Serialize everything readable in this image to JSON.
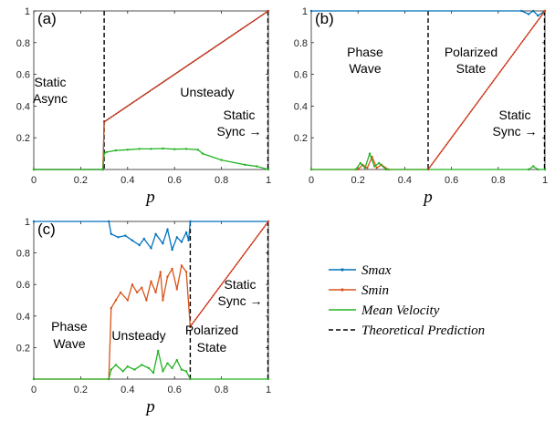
{
  "colors": {
    "smax": "#0072BD",
    "smin": "#D95319",
    "mean_velocity": "#22B322",
    "theoretical": "#000000",
    "theory_overlay": "#C02020"
  },
  "legend": {
    "items": [
      {
        "key": "smax",
        "label": "Smax",
        "style": "line-dot"
      },
      {
        "key": "smin",
        "label": "Smin",
        "style": "line-dot"
      },
      {
        "key": "mean_velocity",
        "label": "Mean Velocity",
        "style": "line"
      },
      {
        "key": "theoretical",
        "label": "Theoretical Prediction",
        "style": "dashed"
      }
    ]
  },
  "chart_data": [
    {
      "type": "line",
      "panel": "(a)",
      "xlabel": "p",
      "ylabel": "",
      "xlim": [
        0,
        1
      ],
      "ylim": [
        0,
        1
      ],
      "xticks": [
        "0",
        "0.2",
        "0.4",
        "0.6",
        "0.8",
        "1"
      ],
      "yticks": [
        "0.2",
        "0.4",
        "0.6",
        "0.8",
        "1"
      ],
      "regions": [
        {
          "lines": [
            "Static",
            "Async"
          ]
        },
        {
          "lines": [
            "Unsteady"
          ]
        },
        {
          "lines": [
            "Static",
            "Sync →"
          ]
        }
      ],
      "boundaries": [
        0.3,
        1.0
      ],
      "series": [
        {
          "key": "smax",
          "points": [
            [
              0,
              0
            ],
            [
              0.295,
              0
            ],
            [
              0.3,
              0.3
            ],
            [
              1.0,
              1.0
            ]
          ]
        },
        {
          "key": "smin",
          "points": [
            [
              0,
              0
            ],
            [
              0.295,
              0
            ],
            [
              0.3,
              0.3
            ],
            [
              1.0,
              1.0
            ]
          ]
        },
        {
          "key": "mean_velocity",
          "points": [
            [
              0,
              0
            ],
            [
              0.295,
              0
            ],
            [
              0.3,
              0.1
            ],
            [
              0.31,
              0.11
            ],
            [
              0.35,
              0.12
            ],
            [
              0.4,
              0.125
            ],
            [
              0.45,
              0.13
            ],
            [
              0.5,
              0.13
            ],
            [
              0.55,
              0.132
            ],
            [
              0.6,
              0.128
            ],
            [
              0.65,
              0.13
            ],
            [
              0.7,
              0.125
            ],
            [
              0.72,
              0.1
            ],
            [
              0.8,
              0.06
            ],
            [
              0.9,
              0.03
            ],
            [
              0.95,
              0.02
            ],
            [
              1.0,
              0.0
            ]
          ]
        }
      ]
    },
    {
      "type": "line",
      "panel": "(b)",
      "xlabel": "p",
      "ylabel": "",
      "xlim": [
        0,
        1
      ],
      "ylim": [
        0,
        1
      ],
      "xticks": [
        "0",
        "0.2",
        "0.4",
        "0.6",
        "0.8",
        "1"
      ],
      "yticks": [
        "0.2",
        "0.4",
        "0.6",
        "0.8",
        "1"
      ],
      "regions": [
        {
          "lines": [
            "Phase",
            "Wave"
          ]
        },
        {
          "lines": [
            "Polarized",
            "State"
          ]
        },
        {
          "lines": [
            "Static",
            "Sync →"
          ]
        }
      ],
      "boundaries": [
        0.5,
        1.0
      ],
      "series": [
        {
          "key": "smax",
          "points": [
            [
              0,
              1
            ],
            [
              0.9,
              1
            ],
            [
              0.93,
              0.98
            ],
            [
              0.95,
              1
            ],
            [
              0.97,
              0.97
            ],
            [
              1.0,
              1
            ]
          ]
        },
        {
          "key": "smin",
          "points": [
            [
              0,
              0
            ],
            [
              0.2,
              0
            ],
            [
              0.22,
              0.03
            ],
            [
              0.24,
              0.01
            ],
            [
              0.26,
              0.08
            ],
            [
              0.28,
              0.01
            ],
            [
              0.3,
              0.03
            ],
            [
              0.33,
              0.0
            ],
            [
              0.5,
              0.0
            ],
            [
              1.0,
              1.0
            ]
          ]
        },
        {
          "key": "mean_velocity",
          "points": [
            [
              0,
              0
            ],
            [
              0.19,
              0
            ],
            [
              0.21,
              0.04
            ],
            [
              0.23,
              0.01
            ],
            [
              0.25,
              0.1
            ],
            [
              0.27,
              0.02
            ],
            [
              0.29,
              0.04
            ],
            [
              0.32,
              0.0
            ],
            [
              0.93,
              0.0
            ],
            [
              0.95,
              0.02
            ],
            [
              0.97,
              0.0
            ],
            [
              1.0,
              0.0
            ]
          ]
        }
      ]
    },
    {
      "type": "line",
      "panel": "(c)",
      "xlabel": "p",
      "ylabel": "",
      "xlim": [
        0,
        1
      ],
      "ylim": [
        0,
        1
      ],
      "xticks": [
        "0",
        "0.2",
        "0.4",
        "0.6",
        "0.8",
        "1"
      ],
      "yticks": [
        "0.2",
        "0.4",
        "0.6",
        "0.8",
        "1"
      ],
      "regions": [
        {
          "lines": [
            "Phase",
            "Wave"
          ]
        },
        {
          "lines": [
            "Unsteady"
          ]
        },
        {
          "lines": [
            "Polarized",
            "State"
          ]
        },
        {
          "lines": [
            "Static",
            "Sync →"
          ]
        }
      ],
      "boundaries": [
        0.667,
        1.0
      ],
      "series": [
        {
          "key": "smax",
          "points": [
            [
              0,
              1
            ],
            [
              0.32,
              1
            ],
            [
              0.33,
              0.92
            ],
            [
              0.36,
              0.9
            ],
            [
              0.39,
              0.91
            ],
            [
              0.42,
              0.88
            ],
            [
              0.45,
              0.85
            ],
            [
              0.47,
              0.89
            ],
            [
              0.5,
              0.83
            ],
            [
              0.52,
              0.92
            ],
            [
              0.55,
              0.86
            ],
            [
              0.57,
              0.95
            ],
            [
              0.59,
              0.82
            ],
            [
              0.61,
              0.9
            ],
            [
              0.63,
              0.87
            ],
            [
              0.65,
              0.93
            ],
            [
              0.66,
              0.88
            ],
            [
              0.667,
              1
            ],
            [
              1.0,
              1
            ]
          ]
        },
        {
          "key": "smin",
          "points": [
            [
              0,
              0
            ],
            [
              0.32,
              0
            ],
            [
              0.33,
              0.45
            ],
            [
              0.35,
              0.5
            ],
            [
              0.37,
              0.55
            ],
            [
              0.4,
              0.5
            ],
            [
              0.42,
              0.6
            ],
            [
              0.44,
              0.55
            ],
            [
              0.46,
              0.58
            ],
            [
              0.48,
              0.5
            ],
            [
              0.5,
              0.62
            ],
            [
              0.52,
              0.55
            ],
            [
              0.54,
              0.68
            ],
            [
              0.55,
              0.5
            ],
            [
              0.57,
              0.65
            ],
            [
              0.59,
              0.7
            ],
            [
              0.61,
              0.57
            ],
            [
              0.63,
              0.72
            ],
            [
              0.65,
              0.68
            ],
            [
              0.667,
              0.333
            ],
            [
              1.0,
              1.0
            ]
          ]
        },
        {
          "key": "mean_velocity",
          "points": [
            [
              0,
              0
            ],
            [
              0.32,
              0
            ],
            [
              0.33,
              0.06
            ],
            [
              0.35,
              0.09
            ],
            [
              0.38,
              0.05
            ],
            [
              0.4,
              0.08
            ],
            [
              0.43,
              0.06
            ],
            [
              0.46,
              0.09
            ],
            [
              0.49,
              0.07
            ],
            [
              0.51,
              0.04
            ],
            [
              0.53,
              0.18
            ],
            [
              0.55,
              0.05
            ],
            [
              0.57,
              0.1
            ],
            [
              0.59,
              0.07
            ],
            [
              0.61,
              0.12
            ],
            [
              0.63,
              0.06
            ],
            [
              0.65,
              0.05
            ],
            [
              0.667,
              0.0
            ],
            [
              1.0,
              0.0
            ]
          ]
        }
      ]
    }
  ]
}
